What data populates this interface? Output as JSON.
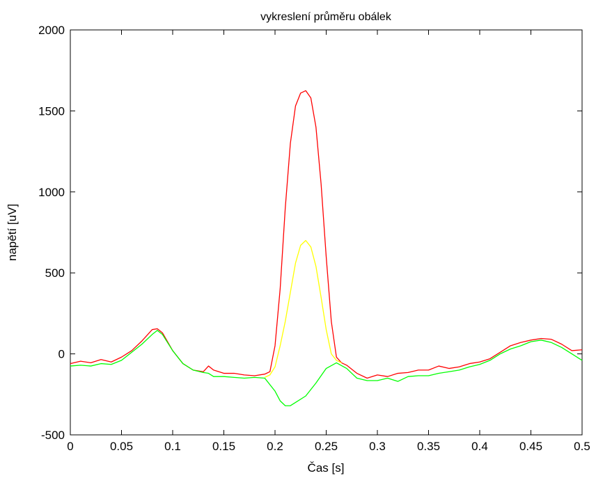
{
  "chart_data": {
    "type": "line",
    "title": "vykreslení průměru obálek",
    "xlabel": "Čas [s]",
    "ylabel": "napětí [uV]",
    "xlim": [
      0,
      0.5
    ],
    "ylim": [
      -500,
      2000
    ],
    "grid": false,
    "x_ticks": [
      0,
      0.05,
      0.1,
      0.15,
      0.2,
      0.25,
      0.3,
      0.35,
      0.4,
      0.45,
      0.5
    ],
    "x_tick_labels": [
      "0",
      "0.05",
      "0.1",
      "0.15",
      "0.2",
      "0.25",
      "0.3",
      "0.35",
      "0.4",
      "0.45",
      "0.5"
    ],
    "y_ticks": [
      -500,
      0,
      500,
      1000,
      1500,
      2000
    ],
    "y_tick_labels": [
      "-500",
      "0",
      "500",
      "1000",
      "1500",
      "2000"
    ],
    "series": [
      {
        "color": "#ff0000",
        "points": [
          [
            0,
            -60
          ],
          [
            0.01,
            -45
          ],
          [
            0.02,
            -55
          ],
          [
            0.03,
            -35
          ],
          [
            0.04,
            -50
          ],
          [
            0.05,
            -20
          ],
          [
            0.06,
            20
          ],
          [
            0.07,
            80
          ],
          [
            0.08,
            150
          ],
          [
            0.085,
            155
          ],
          [
            0.09,
            130
          ],
          [
            0.1,
            20
          ],
          [
            0.11,
            -60
          ],
          [
            0.12,
            -100
          ],
          [
            0.13,
            -110
          ],
          [
            0.135,
            -75
          ],
          [
            0.14,
            -100
          ],
          [
            0.15,
            -120
          ],
          [
            0.16,
            -120
          ],
          [
            0.17,
            -130
          ],
          [
            0.18,
            -135
          ],
          [
            0.19,
            -125
          ],
          [
            0.195,
            -110
          ],
          [
            0.2,
            50
          ],
          [
            0.205,
            400
          ],
          [
            0.21,
            900
          ],
          [
            0.215,
            1300
          ],
          [
            0.22,
            1530
          ],
          [
            0.225,
            1610
          ],
          [
            0.23,
            1625
          ],
          [
            0.235,
            1580
          ],
          [
            0.24,
            1400
          ],
          [
            0.245,
            1050
          ],
          [
            0.25,
            600
          ],
          [
            0.255,
            200
          ],
          [
            0.26,
            -20
          ],
          [
            0.265,
            -55
          ],
          [
            0.27,
            -70
          ],
          [
            0.28,
            -120
          ],
          [
            0.29,
            -150
          ],
          [
            0.3,
            -130
          ],
          [
            0.31,
            -140
          ],
          [
            0.32,
            -120
          ],
          [
            0.33,
            -115
          ],
          [
            0.34,
            -100
          ],
          [
            0.35,
            -100
          ],
          [
            0.36,
            -75
          ],
          [
            0.37,
            -90
          ],
          [
            0.38,
            -80
          ],
          [
            0.39,
            -60
          ],
          [
            0.4,
            -50
          ],
          [
            0.41,
            -30
          ],
          [
            0.42,
            10
          ],
          [
            0.43,
            50
          ],
          [
            0.44,
            70
          ],
          [
            0.45,
            85
          ],
          [
            0.46,
            95
          ],
          [
            0.47,
            90
          ],
          [
            0.48,
            60
          ],
          [
            0.49,
            20
          ],
          [
            0.5,
            25
          ]
        ]
      },
      {
        "color": "#ffff00",
        "points": [
          [
            0.19,
            -145
          ],
          [
            0.195,
            -130
          ],
          [
            0.2,
            -80
          ],
          [
            0.205,
            50
          ],
          [
            0.21,
            200
          ],
          [
            0.215,
            380
          ],
          [
            0.22,
            560
          ],
          [
            0.225,
            670
          ],
          [
            0.23,
            700
          ],
          [
            0.235,
            660
          ],
          [
            0.24,
            540
          ],
          [
            0.245,
            350
          ],
          [
            0.25,
            150
          ],
          [
            0.255,
            0
          ],
          [
            0.26,
            -40
          ],
          [
            0.265,
            -55
          ]
        ]
      },
      {
        "color": "#00ff00",
        "points": [
          [
            0,
            -75
          ],
          [
            0.01,
            -70
          ],
          [
            0.02,
            -75
          ],
          [
            0.03,
            -60
          ],
          [
            0.04,
            -65
          ],
          [
            0.05,
            -40
          ],
          [
            0.06,
            10
          ],
          [
            0.07,
            60
          ],
          [
            0.08,
            120
          ],
          [
            0.085,
            145
          ],
          [
            0.09,
            120
          ],
          [
            0.1,
            20
          ],
          [
            0.11,
            -60
          ],
          [
            0.12,
            -100
          ],
          [
            0.13,
            -115
          ],
          [
            0.135,
            -120
          ],
          [
            0.14,
            -140
          ],
          [
            0.15,
            -140
          ],
          [
            0.16,
            -145
          ],
          [
            0.17,
            -150
          ],
          [
            0.18,
            -145
          ],
          [
            0.19,
            -150
          ],
          [
            0.2,
            -230
          ],
          [
            0.205,
            -290
          ],
          [
            0.21,
            -320
          ],
          [
            0.215,
            -320
          ],
          [
            0.22,
            -300
          ],
          [
            0.23,
            -260
          ],
          [
            0.24,
            -180
          ],
          [
            0.25,
            -90
          ],
          [
            0.26,
            -55
          ],
          [
            0.27,
            -90
          ],
          [
            0.28,
            -150
          ],
          [
            0.29,
            -165
          ],
          [
            0.3,
            -165
          ],
          [
            0.31,
            -150
          ],
          [
            0.32,
            -170
          ],
          [
            0.33,
            -140
          ],
          [
            0.34,
            -135
          ],
          [
            0.35,
            -135
          ],
          [
            0.36,
            -120
          ],
          [
            0.37,
            -110
          ],
          [
            0.38,
            -100
          ],
          [
            0.39,
            -80
          ],
          [
            0.4,
            -65
          ],
          [
            0.41,
            -40
          ],
          [
            0.42,
            0
          ],
          [
            0.43,
            30
          ],
          [
            0.44,
            50
          ],
          [
            0.45,
            75
          ],
          [
            0.46,
            85
          ],
          [
            0.47,
            70
          ],
          [
            0.48,
            40
          ],
          [
            0.49,
            0
          ],
          [
            0.5,
            -40
          ]
        ]
      }
    ]
  }
}
